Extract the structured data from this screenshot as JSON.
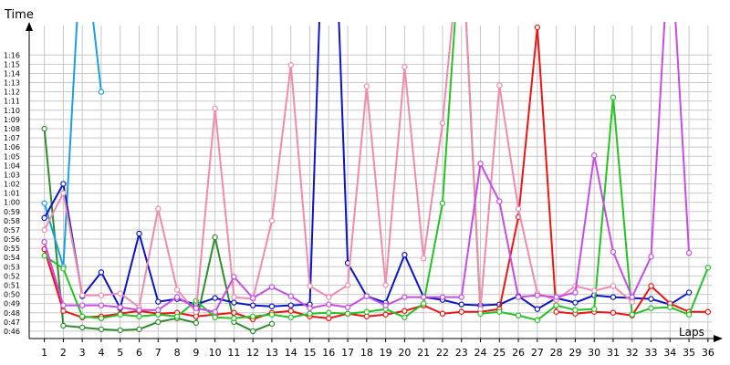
{
  "chart_data": {
    "type": "line",
    "ylabel": "Time",
    "xlabel": "Laps",
    "grid": true,
    "x": [
      1,
      2,
      3,
      4,
      5,
      6,
      7,
      8,
      9,
      10,
      11,
      12,
      13,
      14,
      15,
      16,
      17,
      18,
      19,
      20,
      21,
      22,
      23,
      24,
      25,
      26,
      27,
      28,
      29,
      30,
      31,
      32,
      33,
      34,
      35,
      36
    ],
    "xlim": [
      0.2,
      36.2
    ],
    "ylim": [
      45.2,
      79.2
    ],
    "y_ticks": [
      "0:46",
      "0:47",
      "0:48",
      "0:49",
      "0:50",
      "0:51",
      "0:52",
      "0:53",
      "0:54",
      "0:55",
      "0:56",
      "0:57",
      "0:58",
      "0:59",
      "1:00",
      "1:01",
      "1:02",
      "1:03",
      "1:04",
      "1:05",
      "1:06",
      "1:07",
      "1:08",
      "1:09",
      "1:10",
      "1:11",
      "1:12",
      "1:13",
      "1:14",
      "1:15",
      "1:16"
    ],
    "y_tick_values": [
      46,
      47,
      48,
      49,
      50,
      51,
      52,
      53,
      54,
      55,
      56,
      57,
      58,
      59,
      60,
      61,
      62,
      63,
      64,
      65,
      66,
      67,
      68,
      69,
      70,
      71,
      72,
      73,
      74,
      75,
      76
    ],
    "series": [
      {
        "color": "#2e8b2e",
        "values": [
          68.0,
          46.6,
          46.4,
          46.2,
          46.1,
          46.2,
          47.0,
          47.4,
          46.9,
          56.2,
          47.0,
          46.0,
          46.8,
          null,
          null,
          null,
          null,
          null,
          null,
          null,
          null,
          null,
          null,
          null,
          null,
          null,
          null,
          null,
          null,
          null,
          null,
          null,
          null,
          null,
          null,
          null
        ]
      },
      {
        "color": "#1aa0dc",
        "values": [
          59.9,
          53.0,
          90.0,
          72.0,
          null,
          null,
          null,
          null,
          null,
          null,
          null,
          null,
          null,
          null,
          null,
          null,
          null,
          null,
          null,
          null,
          null,
          null,
          null,
          null,
          null,
          null,
          null,
          null,
          null,
          null,
          null,
          null,
          null,
          null,
          null,
          null
        ]
      },
      {
        "color": "#0a14c8",
        "values": [
          58.3,
          62.0,
          49.8,
          52.4,
          48.5,
          56.6,
          49.2,
          49.5,
          48.9,
          49.6,
          49.1,
          48.8,
          48.7,
          48.8,
          48.9,
          110.0,
          53.4,
          49.8,
          49.1,
          54.3,
          49.7,
          49.4,
          48.9,
          48.8,
          48.9,
          49.8,
          48.4,
          49.6,
          49.1,
          49.9,
          49.7,
          49.6,
          49.5,
          48.9,
          50.2,
          null
        ]
      },
      {
        "color": "#ee1414",
        "values": [
          54.9,
          48.2,
          47.5,
          47.6,
          47.9,
          48.2,
          47.9,
          48.0,
          47.6,
          47.8,
          48.0,
          47.3,
          48.0,
          48.2,
          47.6,
          47.4,
          47.9,
          47.6,
          47.8,
          48.2,
          48.8,
          47.9,
          48.1,
          48.1,
          48.4,
          58.4,
          79.0,
          48.1,
          47.9,
          48.1,
          48.0,
          47.7,
          50.9,
          49.0,
          48.1,
          48.1
        ]
      },
      {
        "color": "#22c322",
        "values": [
          54.2,
          52.8,
          47.6,
          47.4,
          47.8,
          47.6,
          47.8,
          47.6,
          49.3,
          47.5,
          47.4,
          47.6,
          47.8,
          47.5,
          47.9,
          48.0,
          47.9,
          48.1,
          48.4,
          47.5,
          49.0,
          59.9,
          90.0,
          47.9,
          48.1,
          47.7,
          47.2,
          48.8,
          48.3,
          48.4,
          71.4,
          47.8,
          48.5,
          48.6,
          47.8,
          52.9
        ]
      },
      {
        "color": "#f08ab0",
        "values": [
          57.0,
          61.0,
          49.9,
          49.9,
          50.1,
          48.6,
          59.3,
          50.5,
          48.1,
          70.2,
          49.7,
          49.5,
          58.0,
          74.9,
          50.9,
          49.7,
          51.0,
          72.6,
          51.0,
          74.7,
          53.9,
          68.6,
          90.0,
          48.4,
          72.7,
          59.3,
          50.1,
          49.4,
          50.9,
          50.4,
          50.9,
          49.2,
          null,
          null,
          null,
          null
        ]
      },
      {
        "color": "#c84be6",
        "values": [
          55.7,
          48.8,
          48.8,
          48.8,
          48.6,
          48.3,
          48.3,
          49.7,
          48.5,
          48.1,
          51.9,
          49.6,
          50.8,
          49.8,
          48.5,
          48.9,
          48.6,
          49.8,
          48.8,
          49.7,
          49.7,
          49.7,
          49.7,
          64.2,
          60.1,
          49.7,
          49.9,
          49.7,
          50.2,
          65.1,
          54.6,
          49.7,
          54.1,
          90.0,
          54.5,
          null
        ]
      }
    ]
  }
}
